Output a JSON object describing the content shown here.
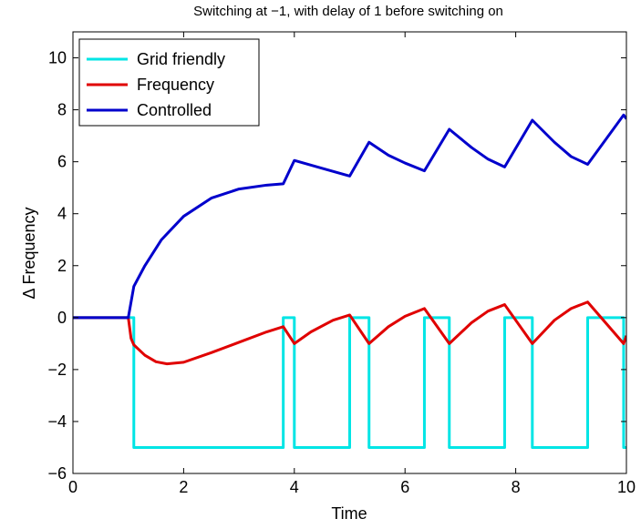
{
  "chart_data": {
    "type": "line",
    "title": "Switching at −1, with delay of 1 before switching on",
    "xlabel": "Time",
    "ylabel": "Δ Frequency",
    "xlim": [
      0,
      10
    ],
    "ylim": [
      -6,
      11
    ],
    "x_ticks": [
      0,
      2,
      4,
      6,
      8,
      10
    ],
    "y_ticks": [
      -6,
      -4,
      -2,
      0,
      2,
      4,
      6,
      8,
      10
    ],
    "x_tick_labels": [
      "0",
      "2",
      "4",
      "6",
      "8",
      "10"
    ],
    "y_tick_labels": [
      "−6",
      "−4",
      "−2",
      "0",
      "2",
      "4",
      "6",
      "8",
      "10"
    ],
    "grid": false,
    "legend": "top-left",
    "series": [
      {
        "name": "Grid friendly",
        "color": "#00e5e5",
        "step": true,
        "x": [
          0,
          1.1,
          1.1,
          3.8,
          3.8,
          4.0,
          4.0,
          5.0,
          5.0,
          5.35,
          5.35,
          6.35,
          6.35,
          6.8,
          6.8,
          7.8,
          7.8,
          8.3,
          8.3,
          9.3,
          9.3,
          9.95,
          9.95,
          10
        ],
        "y": [
          0,
          0,
          -5,
          -5,
          0,
          0,
          -5,
          -5,
          0,
          0,
          -5,
          -5,
          0,
          0,
          -5,
          -5,
          0,
          0,
          -5,
          -5,
          0,
          0,
          -5,
          -5
        ]
      },
      {
        "name": "Frequency",
        "color": "#e00000",
        "x": [
          0,
          1.0,
          1.05,
          1.1,
          1.3,
          1.5,
          1.7,
          2.0,
          2.5,
          3.0,
          3.5,
          3.8,
          4.0,
          4.3,
          4.7,
          5.0,
          5.35,
          5.7,
          6.0,
          6.35,
          6.8,
          7.2,
          7.5,
          7.8,
          8.3,
          8.7,
          9.0,
          9.3,
          9.95,
          10
        ],
        "y": [
          0,
          0,
          -0.8,
          -1.05,
          -1.45,
          -1.7,
          -1.78,
          -1.72,
          -1.35,
          -0.95,
          -0.55,
          -0.35,
          -1.0,
          -0.55,
          -0.1,
          0.1,
          -1.0,
          -0.35,
          0.05,
          0.35,
          -1.0,
          -0.2,
          0.25,
          0.5,
          -1.0,
          -0.1,
          0.35,
          0.6,
          -1.0,
          -0.7
        ]
      },
      {
        "name": "Controlled",
        "color": "#0000cc",
        "x": [
          0,
          1.0,
          1.1,
          1.3,
          1.6,
          2.0,
          2.5,
          3.0,
          3.5,
          3.8,
          4.0,
          4.5,
          5.0,
          5.35,
          5.7,
          6.0,
          6.35,
          6.8,
          7.2,
          7.5,
          7.8,
          8.3,
          8.7,
          9.0,
          9.3,
          9.95,
          10
        ],
        "y": [
          0,
          0,
          1.2,
          2.0,
          3.0,
          3.9,
          4.6,
          4.95,
          5.1,
          5.15,
          6.05,
          5.75,
          5.45,
          6.75,
          6.25,
          5.95,
          5.65,
          7.25,
          6.55,
          6.1,
          5.8,
          7.6,
          6.75,
          6.2,
          5.9,
          7.8,
          7.65
        ]
      }
    ]
  }
}
